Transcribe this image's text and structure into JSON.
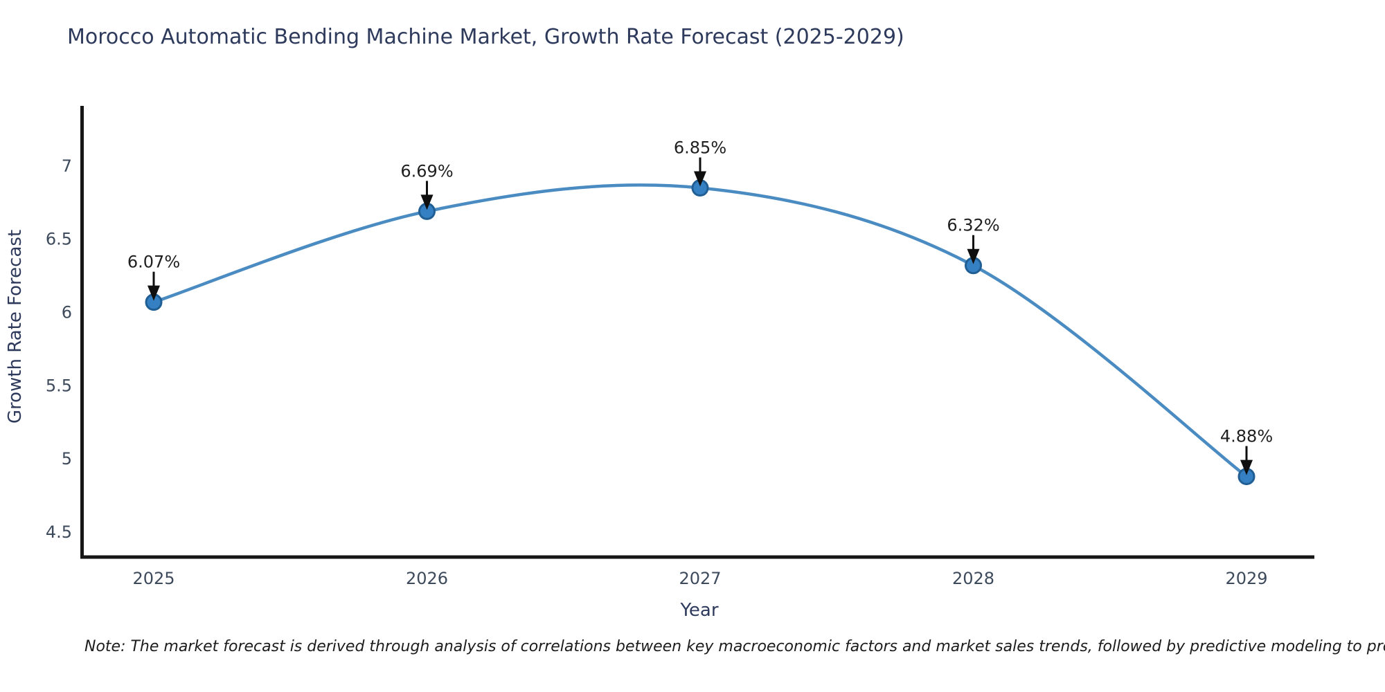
{
  "title": "Morocco Automatic Bending Machine Market, Growth Rate Forecast (2025-2029)",
  "note": "Note: The market forecast is derived through analysis of correlations between key macroeconomic factors and market sales trends, followed by predictive modeling to project future sales",
  "chart_data": {
    "type": "line",
    "title": "Morocco Automatic Bending Machine Market, Growth Rate Forecast (2025-2029)",
    "categories": [
      "2025",
      "2026",
      "2027",
      "2028",
      "2029"
    ],
    "values": [
      6.07,
      6.69,
      6.85,
      6.32,
      4.88
    ],
    "point_labels": [
      "6.07%",
      "6.69%",
      "6.85%",
      "6.32%",
      "4.88%"
    ],
    "xlabel": "Year",
    "ylabel": "Growth Rate Forecast",
    "yticks": [
      4.5,
      5,
      5.5,
      6,
      6.5,
      7
    ],
    "ylim": [
      4.33,
      7.41
    ],
    "grid": false,
    "legend": "none",
    "line_smooth": true,
    "colors": {
      "line": "#4a8bc2",
      "marker_fill": "#3580c2",
      "marker_edge": "#205e93",
      "spine": "#161616",
      "title_text": "#2e3a5c",
      "tick_text": "#3d4a5c",
      "annotation_text": "#1f1f1f",
      "arrow": "#0f0f0f",
      "background": "#ffffff"
    }
  }
}
